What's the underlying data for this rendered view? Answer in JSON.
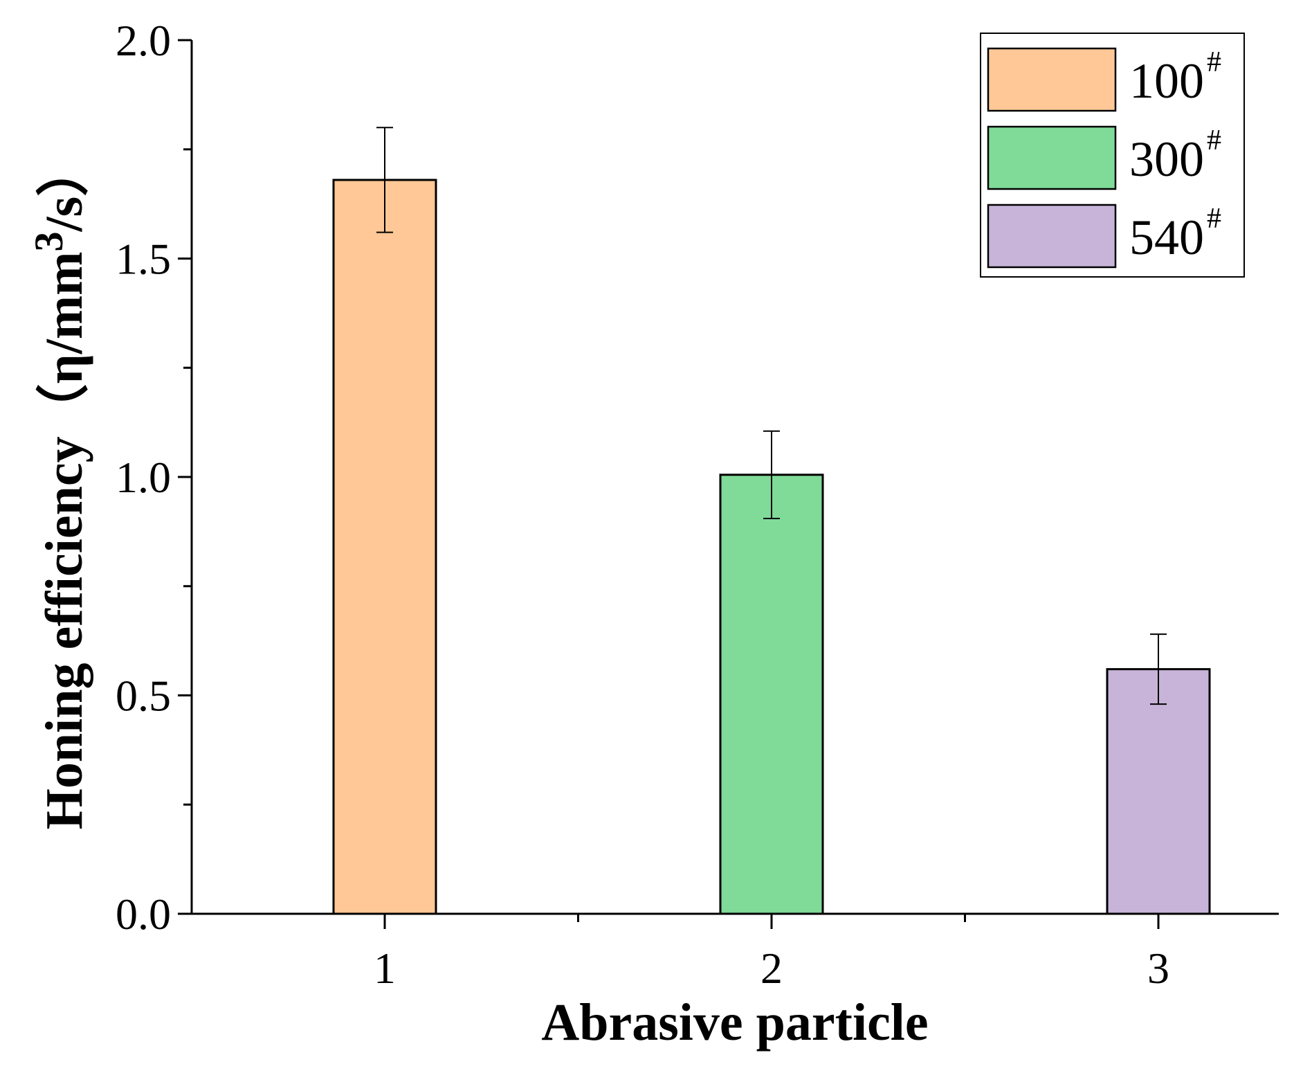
{
  "chart_data": {
    "type": "bar",
    "categories": [
      "1",
      "2",
      "3"
    ],
    "series": [
      {
        "name": "100",
        "name_sup": "#",
        "color": "#FFC896",
        "category": "1",
        "value": 1.68,
        "error_low": 1.56,
        "error_high": 1.8
      },
      {
        "name": "300",
        "name_sup": "#",
        "color": "#80DA98",
        "category": "2",
        "value": 1.005,
        "error_low": 0.905,
        "error_high": 1.105
      },
      {
        "name": "540",
        "name_sup": "#",
        "color": "#C8B4D8",
        "category": "3",
        "value": 0.56,
        "error_low": 0.48,
        "error_high": 0.64
      }
    ],
    "xlabel": "Abrasive particle",
    "ylabel": "Honing efficiency（η/mm³/s）",
    "ylabel_parts": {
      "main": "Honing efficiency（η/mm",
      "sup": "3",
      "tail": "/s）"
    },
    "ylim": [
      0,
      2.0
    ],
    "yticks": [
      "0.0",
      "0.5",
      "1.0",
      "1.5",
      "2.0"
    ],
    "yminor_step": 0.25,
    "legend_position": "top-right",
    "grid": false
  }
}
